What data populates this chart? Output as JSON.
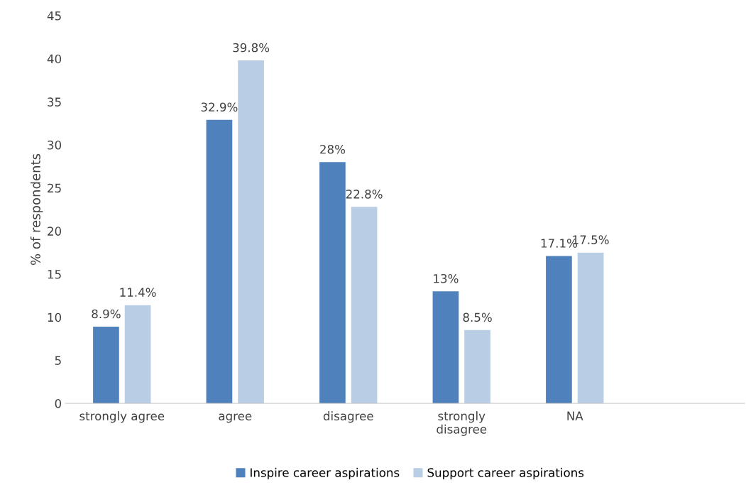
{
  "chart_data": {
    "type": "bar",
    "categories": [
      "strongly agree",
      "agree",
      "disagree",
      "strongly\ndisagree",
      "NA",
      null
    ],
    "ylabel": "% of respondents",
    "ylim": [
      0,
      45
    ],
    "yticks": [
      0,
      5,
      10,
      15,
      20,
      25,
      30,
      35,
      40,
      45
    ],
    "grid": false,
    "legend": "bottom",
    "series": [
      {
        "name": "Inspire career aspirations",
        "color": "#4f81bd",
        "values": [
          8.9,
          32.9,
          28,
          13,
          17.1,
          null
        ],
        "value_labels": [
          "8.9%",
          "32.9%",
          "28%",
          "13%",
          "17.1%",
          null
        ]
      },
      {
        "name": "Support career aspirations",
        "color": "#b9cde5",
        "values": [
          11.4,
          39.8,
          22.8,
          8.5,
          17.5,
          null
        ],
        "value_labels": [
          "11.4%",
          "39.8%",
          "22.8%",
          "8.5%",
          "17.5%",
          null
        ]
      }
    ]
  }
}
